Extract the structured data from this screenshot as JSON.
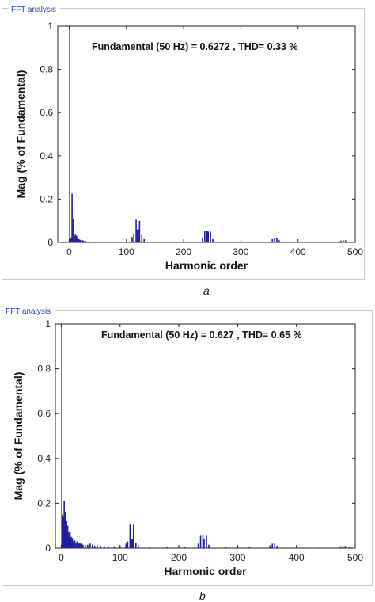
{
  "panels": [
    {
      "window_title": "FFT analysis",
      "annotation": "Fundamental (50 Hz) = 0.6272 , THD= 0.33 %",
      "caption": "a"
    },
    {
      "window_title": "FFT analysis",
      "annotation": "Fundamental (50 Hz) = 0.627 , THD= 0.65 %",
      "caption": "b"
    }
  ],
  "colors": {
    "bar": "#1f1f9e",
    "title": "#1a3ccf",
    "frame": "#c8c8c8"
  },
  "chart_data": [
    {
      "type": "bar",
      "title": "",
      "xlabel": "Harmonic order",
      "ylabel": "Mag (% of Fundamental)",
      "xlim": [
        -20,
        500
      ],
      "ylim": [
        0,
        1
      ],
      "xticks": [
        0,
        100,
        200,
        300,
        400,
        500
      ],
      "yticks": [
        0,
        0.2,
        0.4,
        0.6,
        0.8,
        1
      ],
      "ytick_labels": [
        "0",
        "0.2",
        "0.4",
        "0.6",
        "0.8",
        "1"
      ],
      "grid": false,
      "bars": [
        {
          "x": 1,
          "y": 1.0
        },
        {
          "x": 5,
          "y": 0.225
        },
        {
          "x": 7,
          "y": 0.11
        },
        {
          "x": 3,
          "y": 0.02
        },
        {
          "x": 9,
          "y": 0.03
        },
        {
          "x": 11,
          "y": 0.04
        },
        {
          "x": 13,
          "y": 0.03
        },
        {
          "x": 15,
          "y": 0.015
        },
        {
          "x": 17,
          "y": 0.015
        },
        {
          "x": 19,
          "y": 0.012
        },
        {
          "x": 23,
          "y": 0.01
        },
        {
          "x": 25,
          "y": 0.008
        },
        {
          "x": 29,
          "y": 0.006
        },
        {
          "x": 35,
          "y": 0.005
        },
        {
          "x": 45,
          "y": 0.004
        },
        {
          "x": 110,
          "y": 0.025
        },
        {
          "x": 113,
          "y": 0.04
        },
        {
          "x": 117,
          "y": 0.105
        },
        {
          "x": 119,
          "y": 0.06
        },
        {
          "x": 121,
          "y": 0.06
        },
        {
          "x": 123,
          "y": 0.1
        },
        {
          "x": 127,
          "y": 0.035
        },
        {
          "x": 131,
          "y": 0.015
        },
        {
          "x": 233,
          "y": 0.02
        },
        {
          "x": 237,
          "y": 0.055
        },
        {
          "x": 241,
          "y": 0.055
        },
        {
          "x": 243,
          "y": 0.05
        },
        {
          "x": 247,
          "y": 0.05
        },
        {
          "x": 251,
          "y": 0.015
        },
        {
          "x": 355,
          "y": 0.015
        },
        {
          "x": 359,
          "y": 0.02
        },
        {
          "x": 363,
          "y": 0.02
        },
        {
          "x": 367,
          "y": 0.01
        },
        {
          "x": 475,
          "y": 0.008
        },
        {
          "x": 479,
          "y": 0.01
        },
        {
          "x": 483,
          "y": 0.01
        }
      ]
    },
    {
      "type": "bar",
      "title": "",
      "xlabel": "Harmonic order",
      "ylabel": "Mag (% of Fundamental)",
      "xlim": [
        -10,
        500
      ],
      "ylim": [
        0,
        1
      ],
      "xticks": [
        0,
        100,
        200,
        300,
        400,
        500
      ],
      "yticks": [
        0,
        0.2,
        0.4,
        0.6,
        0.8,
        1
      ],
      "ytick_labels": [
        "0",
        "0.2",
        "0.4",
        "0.6",
        "0.8",
        "1"
      ],
      "grid": false,
      "bars": [
        {
          "x": 1,
          "y": 1.0
        },
        {
          "x": 2,
          "y": 0.15
        },
        {
          "x": 3,
          "y": 0.14
        },
        {
          "x": 4,
          "y": 0.12
        },
        {
          "x": 5,
          "y": 0.21
        },
        {
          "x": 6,
          "y": 0.13
        },
        {
          "x": 7,
          "y": 0.16
        },
        {
          "x": 8,
          "y": 0.1
        },
        {
          "x": 9,
          "y": 0.12
        },
        {
          "x": 10,
          "y": 0.08
        },
        {
          "x": 11,
          "y": 0.1
        },
        {
          "x": 12,
          "y": 0.06
        },
        {
          "x": 13,
          "y": 0.07
        },
        {
          "x": 14,
          "y": 0.05
        },
        {
          "x": 15,
          "y": 0.075
        },
        {
          "x": 16,
          "y": 0.04
        },
        {
          "x": 17,
          "y": 0.05
        },
        {
          "x": 18,
          "y": 0.03
        },
        {
          "x": 19,
          "y": 0.045
        },
        {
          "x": 21,
          "y": 0.03
        },
        {
          "x": 23,
          "y": 0.035
        },
        {
          "x": 25,
          "y": 0.025
        },
        {
          "x": 27,
          "y": 0.03
        },
        {
          "x": 29,
          "y": 0.02
        },
        {
          "x": 31,
          "y": 0.025
        },
        {
          "x": 33,
          "y": 0.02
        },
        {
          "x": 35,
          "y": 0.02
        },
        {
          "x": 37,
          "y": 0.015
        },
        {
          "x": 41,
          "y": 0.015
        },
        {
          "x": 45,
          "y": 0.015
        },
        {
          "x": 49,
          "y": 0.02
        },
        {
          "x": 53,
          "y": 0.015
        },
        {
          "x": 57,
          "y": 0.01
        },
        {
          "x": 61,
          "y": 0.015
        },
        {
          "x": 67,
          "y": 0.01
        },
        {
          "x": 73,
          "y": 0.01
        },
        {
          "x": 80,
          "y": 0.008
        },
        {
          "x": 90,
          "y": 0.008
        },
        {
          "x": 100,
          "y": 0.01
        },
        {
          "x": 110,
          "y": 0.02
        },
        {
          "x": 113,
          "y": 0.03
        },
        {
          "x": 117,
          "y": 0.105
        },
        {
          "x": 119,
          "y": 0.04
        },
        {
          "x": 121,
          "y": 0.04
        },
        {
          "x": 123,
          "y": 0.105
        },
        {
          "x": 127,
          "y": 0.025
        },
        {
          "x": 131,
          "y": 0.012
        },
        {
          "x": 150,
          "y": 0.006
        },
        {
          "x": 180,
          "y": 0.006
        },
        {
          "x": 210,
          "y": 0.006
        },
        {
          "x": 233,
          "y": 0.02
        },
        {
          "x": 237,
          "y": 0.055
        },
        {
          "x": 241,
          "y": 0.055
        },
        {
          "x": 243,
          "y": 0.04
        },
        {
          "x": 247,
          "y": 0.055
        },
        {
          "x": 251,
          "y": 0.015
        },
        {
          "x": 280,
          "y": 0.005
        },
        {
          "x": 320,
          "y": 0.005
        },
        {
          "x": 355,
          "y": 0.012
        },
        {
          "x": 359,
          "y": 0.02
        },
        {
          "x": 363,
          "y": 0.02
        },
        {
          "x": 367,
          "y": 0.01
        },
        {
          "x": 400,
          "y": 0.004
        },
        {
          "x": 440,
          "y": 0.004
        },
        {
          "x": 475,
          "y": 0.008
        },
        {
          "x": 479,
          "y": 0.01
        },
        {
          "x": 483,
          "y": 0.01
        },
        {
          "x": 490,
          "y": 0.006
        }
      ]
    }
  ]
}
